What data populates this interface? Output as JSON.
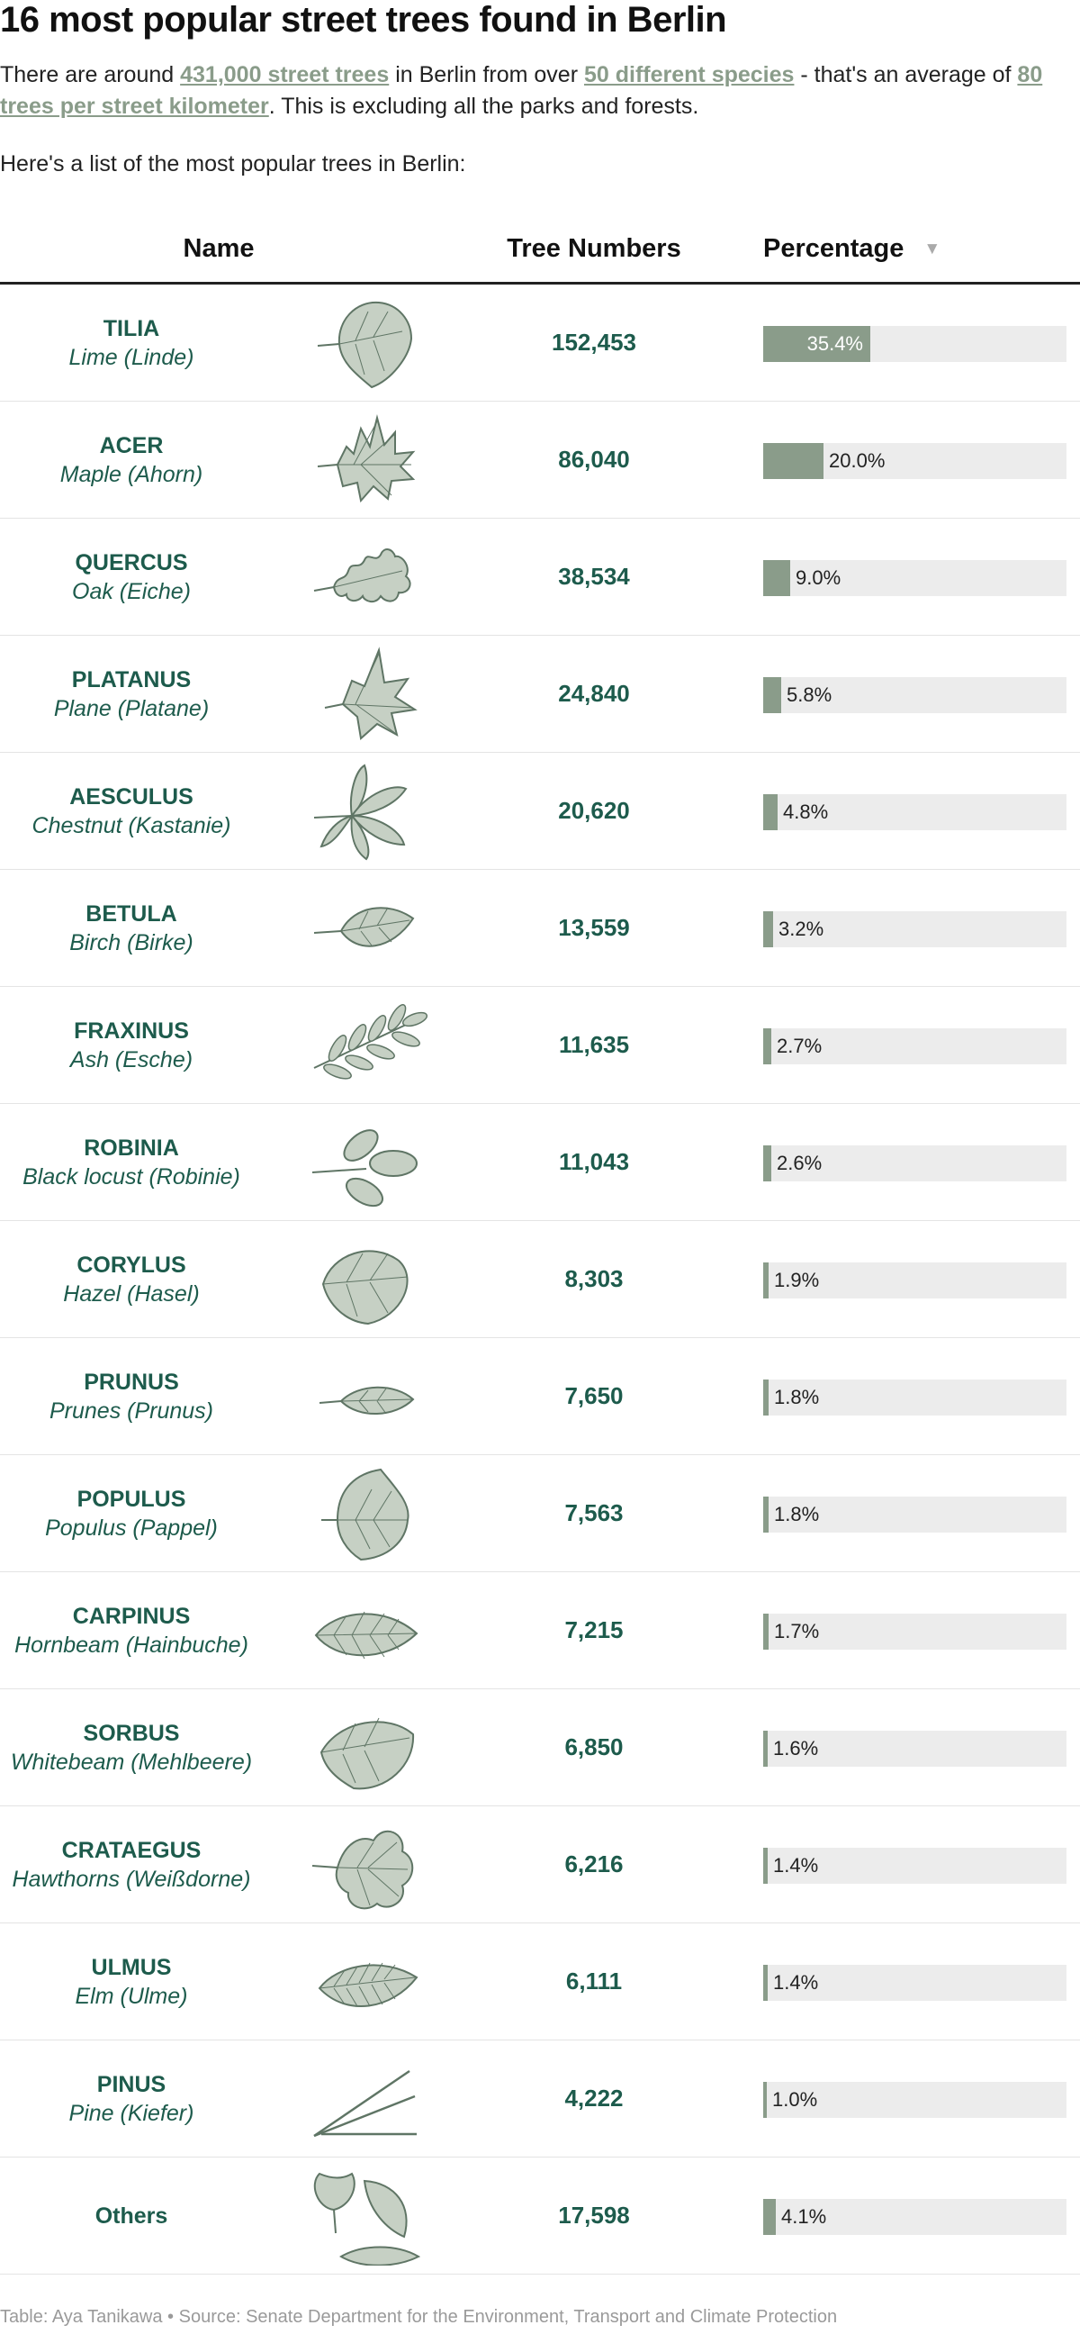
{
  "title": "16 most popular street trees found in Berlin",
  "intro": {
    "p1": "There are around ",
    "link1": "431,000 street trees",
    "p2": " in Berlin from over ",
    "link2": "50 different species",
    "p3": " - that's an average of ",
    "link3": "80 trees per street kilometer",
    "p4": ". This is excluding all the parks and forests."
  },
  "lead": "Here's a list of the most popular trees in Berlin:",
  "table": {
    "headers": {
      "name": "Name",
      "numbers": "Tree Numbers",
      "percentage": "Percentage"
    },
    "sort_icon": "sort-down-icon",
    "bar_color": "#8a9c8a",
    "track_color": "#ececec",
    "text_color": "#1d5b4c",
    "rows": [
      {
        "genus": "TILIA",
        "common": "Lime (Linde)",
        "leaf": "linden-leaf-icon",
        "number": "152,453",
        "percent": "35.4%",
        "fraction": 0.354
      },
      {
        "genus": "ACER",
        "common": "Maple (Ahorn)",
        "leaf": "maple-leaf-icon",
        "number": "86,040",
        "percent": "20.0%",
        "fraction": 0.2
      },
      {
        "genus": "QUERCUS",
        "common": "Oak (Eiche)",
        "leaf": "oak-leaf-icon",
        "number": "38,534",
        "percent": "9.0%",
        "fraction": 0.09
      },
      {
        "genus": "PLATANUS",
        "common": "Plane (Platane)",
        "leaf": "plane-leaf-icon",
        "number": "24,840",
        "percent": "5.8%",
        "fraction": 0.058
      },
      {
        "genus": "AESCULUS",
        "common": "Chestnut (Kastanie)",
        "leaf": "chestnut-leaf-icon",
        "number": "20,620",
        "percent": "4.8%",
        "fraction": 0.048
      },
      {
        "genus": "BETULA",
        "common": "Birch (Birke)",
        "leaf": "birch-leaf-icon",
        "number": "13,559",
        "percent": "3.2%",
        "fraction": 0.032
      },
      {
        "genus": "FRAXINUS",
        "common": "Ash (Esche)",
        "leaf": "ash-leaf-icon",
        "number": "11,635",
        "percent": "2.7%",
        "fraction": 0.027
      },
      {
        "genus": "ROBINIA",
        "common": "Black locust (Robinie)",
        "leaf": "robinia-leaf-icon",
        "number": "11,043",
        "percent": "2.6%",
        "fraction": 0.026
      },
      {
        "genus": "CORYLUS",
        "common": "Hazel (Hasel)",
        "leaf": "hazel-leaf-icon",
        "number": "8,303",
        "percent": "1.9%",
        "fraction": 0.019
      },
      {
        "genus": "PRUNUS",
        "common": "Prunes (Prunus)",
        "leaf": "prunus-leaf-icon",
        "number": "7,650",
        "percent": "1.8%",
        "fraction": 0.018
      },
      {
        "genus": "POPULUS",
        "common": "Populus (Pappel)",
        "leaf": "poplar-leaf-icon",
        "number": "7,563",
        "percent": "1.8%",
        "fraction": 0.018
      },
      {
        "genus": "CARPINUS",
        "common": "Hornbeam (Hainbuche)",
        "leaf": "hornbeam-leaf-icon",
        "number": "7,215",
        "percent": "1.7%",
        "fraction": 0.017
      },
      {
        "genus": "SORBUS",
        "common": "Whitebeam (Mehlbeere)",
        "leaf": "whitebeam-leaf-icon",
        "number": "6,850",
        "percent": "1.6%",
        "fraction": 0.016
      },
      {
        "genus": "CRATAEGUS",
        "common": "Hawthorns (Weißdorne)",
        "leaf": "hawthorn-leaf-icon",
        "number": "6,216",
        "percent": "1.4%",
        "fraction": 0.014
      },
      {
        "genus": "ULMUS",
        "common": "Elm (Ulme)",
        "leaf": "elm-leaf-icon",
        "number": "6,111",
        "percent": "1.4%",
        "fraction": 0.014
      },
      {
        "genus": "PINUS",
        "common": "Pine (Kiefer)",
        "leaf": "pine-needles-icon",
        "number": "4,222",
        "percent": "1.0%",
        "fraction": 0.01
      },
      {
        "genus": "",
        "common": "",
        "label": "Others",
        "leaf": "mixed-leaves-icon",
        "number": "17,598",
        "percent": "4.1%",
        "fraction": 0.041
      }
    ]
  },
  "footer": "Table: Aya Tanikawa • Source: Senate Department for the Environment, Transport and Climate Protection"
}
